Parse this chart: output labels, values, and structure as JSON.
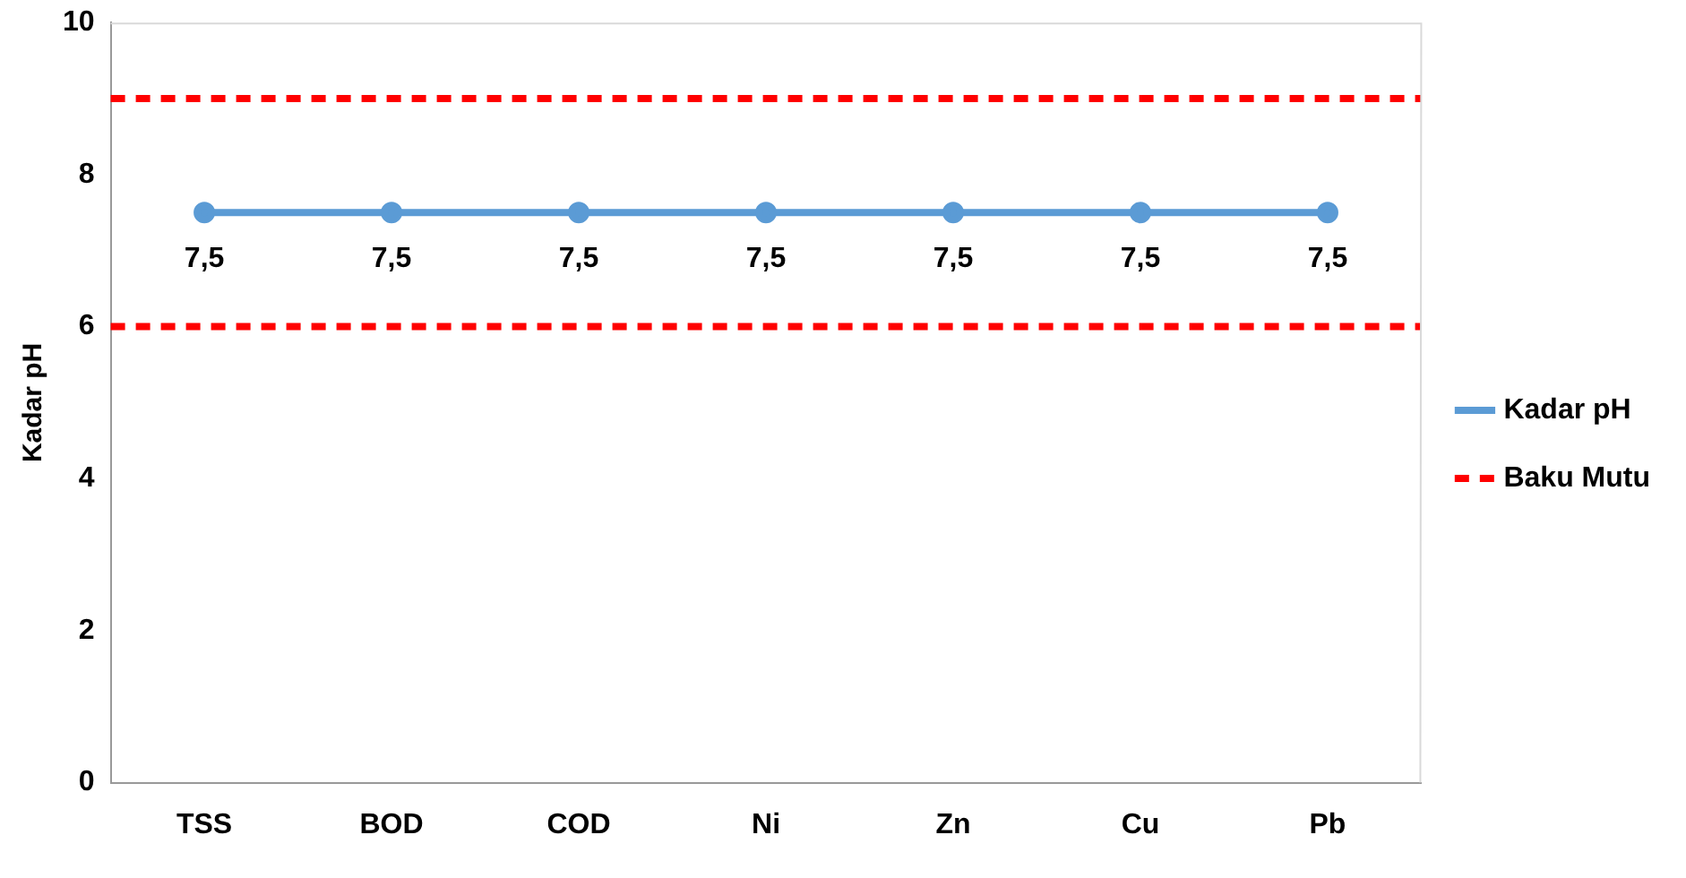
{
  "chart_data": {
    "type": "line",
    "ylabel": "Kadar pH",
    "categories": [
      "TSS",
      "BOD",
      "COD",
      "Ni",
      "Zn",
      "Cu",
      "Pb"
    ],
    "series": [
      {
        "name": "Kadar pH",
        "color": "#5b9bd5",
        "values": [
          7.5,
          7.5,
          7.5,
          7.5,
          7.5,
          7.5,
          7.5
        ],
        "value_labels": [
          "7,5",
          "7,5",
          "7,5",
          "7,5",
          "7,5",
          "7,5",
          "7,5"
        ]
      }
    ],
    "ylim": [
      0,
      10
    ],
    "yticks": [
      0,
      2,
      4,
      6,
      8,
      10
    ],
    "grid": false,
    "legend": "right",
    "marker": "circle",
    "line_style": "solid",
    "ref_lines": [
      {
        "axis": "y",
        "value": 9,
        "label": "Baku Mutu",
        "color": "#ff0000",
        "line_style": "dashed"
      },
      {
        "axis": "y",
        "value": 6,
        "color": "#ff0000",
        "line_style": "dashed"
      }
    ]
  }
}
